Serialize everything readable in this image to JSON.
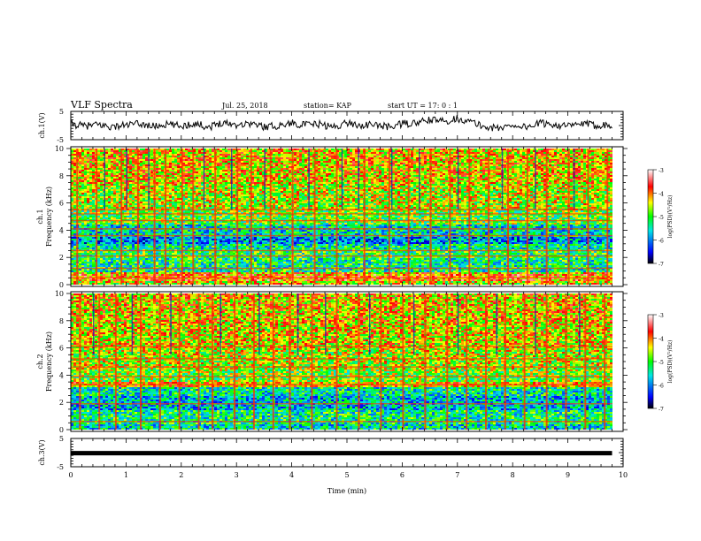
{
  "header": {
    "title": "VLF Spectra",
    "date": "Jul. 25, 2018",
    "station": "station= KAP",
    "start": "start UT =  17: 0 : 1"
  },
  "chart_data": [
    {
      "type": "line",
      "name": "ch1-waveform",
      "ylabel": "ch.1(V)",
      "ylim": [
        -5,
        5
      ],
      "yticks": [
        "5",
        "-5"
      ],
      "xlim": [
        0,
        10
      ],
      "x": [
        0,
        0.25,
        0.5,
        0.75,
        1,
        1.25,
        1.5,
        1.75,
        2,
        2.25,
        2.5,
        2.75,
        3,
        3.25,
        3.5,
        3.75,
        4,
        4.25,
        4.5,
        4.75,
        5,
        5.25,
        5.5,
        5.75,
        6,
        6.25,
        6.5,
        6.75,
        7,
        7.25,
        7.5,
        7.75,
        8,
        8.25,
        8.5,
        8.75,
        9,
        9.25,
        9.5,
        9.8
      ],
      "values": [
        0.5,
        -0.2,
        0.3,
        -0.5,
        0.2,
        0.6,
        -0.3,
        0.4,
        -0.2,
        0.8,
        -0.6,
        1.2,
        0.3,
        0.8,
        -0.4,
        -0.1,
        0.9,
        0.2,
        0.5,
        -0.6,
        1.0,
        0.0,
        0.3,
        -0.5,
        0.6,
        0.8,
        2.0,
        1.5,
        2.5,
        1.2,
        -0.5,
        -1.0,
        0.2,
        -0.5,
        0.8,
        0.4,
        -0.3,
        0.6,
        0.1,
        0.3
      ]
    },
    {
      "type": "heatmap",
      "name": "ch1-spectrogram",
      "ylabel": "ch.1 Frequency (kHz)",
      "ylim": [
        0,
        10
      ],
      "yticks": [
        "0",
        "2",
        "4",
        "6",
        "8",
        "10"
      ],
      "xlim": [
        0,
        10
      ],
      "colorbar": {
        "label": "log(PSD)(V²/Hz)",
        "range": [
          -7,
          -3
        ],
        "ticks": [
          "-3",
          "-4",
          "-5",
          "-6",
          "-7"
        ]
      },
      "bands": [
        {
          "f0": 0.0,
          "f1": 0.3,
          "level": -4.5
        },
        {
          "f0": 0.3,
          "f1": 0.8,
          "level": -4.0
        },
        {
          "f0": 0.8,
          "f1": 1.0,
          "level": -4.2
        },
        {
          "f0": 1.0,
          "f1": 2.0,
          "level": -5.3
        },
        {
          "f0": 2.0,
          "f1": 2.6,
          "level": -5.1
        },
        {
          "f0": 2.6,
          "f1": 3.0,
          "level": -5.4
        },
        {
          "f0": 3.0,
          "f1": 3.6,
          "level": -5.9
        },
        {
          "f0": 3.6,
          "f1": 4.5,
          "level": -5.5
        },
        {
          "f0": 4.5,
          "f1": 5.5,
          "level": -4.9
        },
        {
          "f0": 5.5,
          "f1": 7.5,
          "level": -4.6
        },
        {
          "f0": 7.5,
          "f1": 10.0,
          "level": -4.3
        }
      ],
      "lines_khz": [
        0.5,
        1.2,
        2.1,
        2.5,
        3.6,
        4.1,
        4.7,
        5.2,
        5.5
      ],
      "red_columns_min": [
        0.1,
        0.45,
        0.9,
        1.2,
        1.5,
        1.7,
        2.0,
        2.2,
        2.6,
        3.0,
        3.25,
        3.6,
        4.0,
        4.4,
        4.8,
        5.3,
        5.75,
        6.1,
        6.5,
        6.85,
        7.2,
        7.55,
        7.9,
        8.25,
        8.6,
        9.0,
        9.35,
        9.7
      ],
      "blue_columns_min": [
        0.6,
        1.0,
        1.4,
        2.4,
        2.9,
        3.5,
        4.3,
        4.9,
        5.2,
        5.8,
        6.3,
        7.0,
        7.8,
        8.4,
        9.1
      ]
    },
    {
      "type": "heatmap",
      "name": "ch2-spectrogram",
      "ylabel": "ch.2 Frequency (kHz)",
      "ylim": [
        0,
        10
      ],
      "yticks": [
        "0",
        "2",
        "4",
        "6",
        "8",
        "10"
      ],
      "xlim": [
        0,
        10
      ],
      "colorbar": {
        "label": "log(PSD)(V²/Hz)",
        "range": [
          -7,
          -3
        ],
        "ticks": [
          "-3",
          "-4",
          "-5",
          "-6",
          "-7"
        ]
      },
      "bands": [
        {
          "f0": 0.0,
          "f1": 0.5,
          "level": -5.5
        },
        {
          "f0": 0.5,
          "f1": 1.5,
          "level": -5.3
        },
        {
          "f0": 1.5,
          "f1": 2.5,
          "level": -5.7
        },
        {
          "f0": 2.5,
          "f1": 3.2,
          "level": -5.4
        },
        {
          "f0": 3.2,
          "f1": 3.6,
          "level": -4.2
        },
        {
          "f0": 3.6,
          "f1": 4.5,
          "level": -4.8
        },
        {
          "f0": 4.5,
          "f1": 6.0,
          "level": -4.6
        },
        {
          "f0": 6.0,
          "f1": 8.0,
          "level": -4.4
        },
        {
          "f0": 8.0,
          "f1": 10.0,
          "level": -4.3
        }
      ],
      "lines_khz": [
        0.6,
        1.9,
        3.3,
        3.9,
        4.6,
        5.2,
        6.1
      ],
      "red_columns_min": [
        0.15,
        0.5,
        0.8,
        1.25,
        1.6,
        1.95,
        2.3,
        2.55,
        2.95,
        3.3,
        3.65,
        3.95,
        4.35,
        4.8,
        5.2,
        5.6,
        6.0,
        6.4,
        6.8,
        7.15,
        7.5,
        7.85,
        8.2,
        8.6,
        8.95,
        9.3,
        9.65
      ],
      "blue_columns_min": [
        0.4,
        1.1,
        1.8,
        2.7,
        3.4,
        4.1,
        4.6,
        5.4,
        6.2,
        7.0,
        7.7,
        8.4,
        9.2
      ]
    },
    {
      "type": "line",
      "name": "ch3-waveform",
      "ylabel": "ch.3(V)",
      "ylim": [
        -5,
        5
      ],
      "yticks": [
        "5",
        "-5"
      ],
      "xlim": [
        0,
        10
      ],
      "x": [
        0,
        9.8
      ],
      "values": [
        -0.2,
        -0.2
      ]
    }
  ],
  "xaxis": {
    "label": "Time (min)",
    "ticks": [
      "0",
      "1",
      "2",
      "3",
      "4",
      "5",
      "6",
      "7",
      "8",
      "9",
      "10"
    ]
  },
  "colors": {
    "ink": "#000000",
    "background": "#ffffff"
  }
}
